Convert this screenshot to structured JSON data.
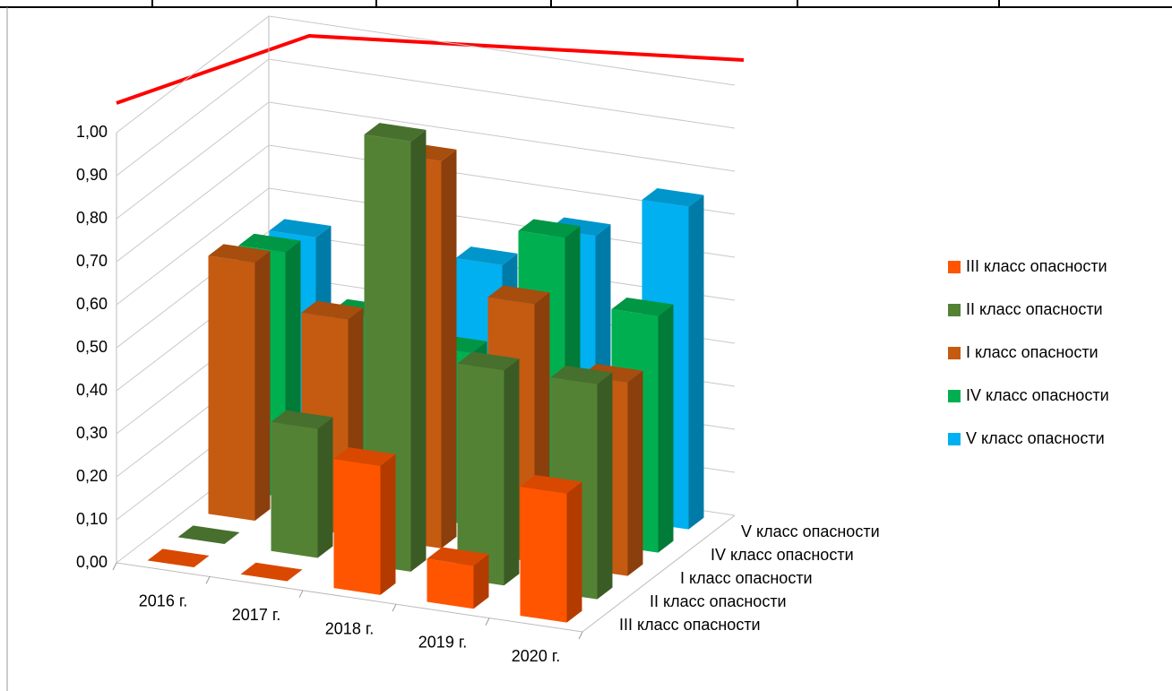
{
  "chart_data": {
    "type": "bar3d",
    "categories": [
      "2016 г.",
      "2017 г.",
      "2018 г.",
      "2019 г.",
      "2020 г."
    ],
    "series": [
      {
        "name": "III класс опасности",
        "color": "#ff5500",
        "values": [
          0,
          0,
          0.3,
          0.1,
          0.3
        ]
      },
      {
        "name": "II класс опасности",
        "color": "#548235",
        "values": [
          0,
          0.3,
          1.0,
          0.5,
          0.5
        ]
      },
      {
        "name": "I класс опасности",
        "color": "#c55a11",
        "values": [
          0.6,
          0.5,
          0.9,
          0.6,
          0.45
        ]
      },
      {
        "name": "IV класс опасности",
        "color": "#00b050",
        "values": [
          0.57,
          0.45,
          0.4,
          0.7,
          0.55
        ]
      },
      {
        "name": "V класс опасности",
        "color": "#00b0f0",
        "values": [
          0.55,
          0.4,
          0.55,
          0.65,
          0.75
        ]
      }
    ],
    "ylim": [
      0,
      1
    ],
    "yticks": [
      {
        "value": 0,
        "label": "0,00"
      },
      {
        "value": 0.1,
        "label": "0,10"
      },
      {
        "value": 0.2,
        "label": "0,20"
      },
      {
        "value": 0.3,
        "label": "0,30"
      },
      {
        "value": 0.4,
        "label": "0,40"
      },
      {
        "value": 0.5,
        "label": "0,50"
      },
      {
        "value": 0.6,
        "label": "0,60"
      },
      {
        "value": 0.7,
        "label": "0,70"
      },
      {
        "value": 0.8,
        "label": "0,80"
      },
      {
        "value": 0.9,
        "label": "0,90"
      },
      {
        "value": 1,
        "label": "1,00"
      }
    ],
    "grid": true,
    "legend": "right"
  }
}
